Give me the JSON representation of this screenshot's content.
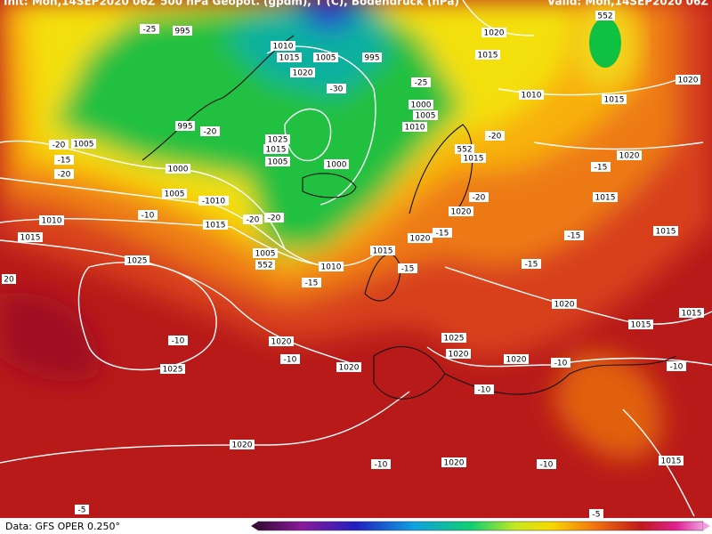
{
  "header": {
    "init": "Init: Mon,14SEP2020 06Z",
    "title": "500 hPa Geopot. (gpdm), T (C), Bodendruck (hPa)",
    "valid": "Valid: Mon,14SEP2020 06Z"
  },
  "labels": [
    "995",
    "-25",
    "1010",
    "1015",
    "1005",
    "995",
    "1020",
    "-30",
    "-25",
    "1000",
    "1005",
    "1010",
    "995",
    "-20",
    "1025",
    "1015",
    "1005",
    "1000",
    "-20",
    "1005",
    "-15",
    "-20",
    "1000",
    "1005",
    "-1010",
    "-10",
    "-20",
    "-20",
    "1010",
    "1015",
    "1015",
    "1005",
    "552",
    "1010",
    "1015",
    "-15",
    "-15",
    "1020",
    "-20",
    "1020",
    "-15",
    "1025",
    "1020",
    "1015",
    "552",
    "1010",
    "1015",
    "1020",
    "-20",
    "552",
    "1015",
    "-15",
    "1020",
    "1015",
    "-15",
    "-15",
    "1015",
    "1020",
    "1015",
    "1015",
    "-10",
    "1020",
    "-10",
    "1025",
    "1020",
    "1025",
    "1020",
    "1020",
    "-10",
    "-10",
    "1020",
    "-10",
    "1020",
    "-10",
    "1015",
    "-5",
    "-5",
    "-10",
    "20"
  ],
  "footer": {
    "source": "Data: GFS OPER 0.250°"
  }
}
